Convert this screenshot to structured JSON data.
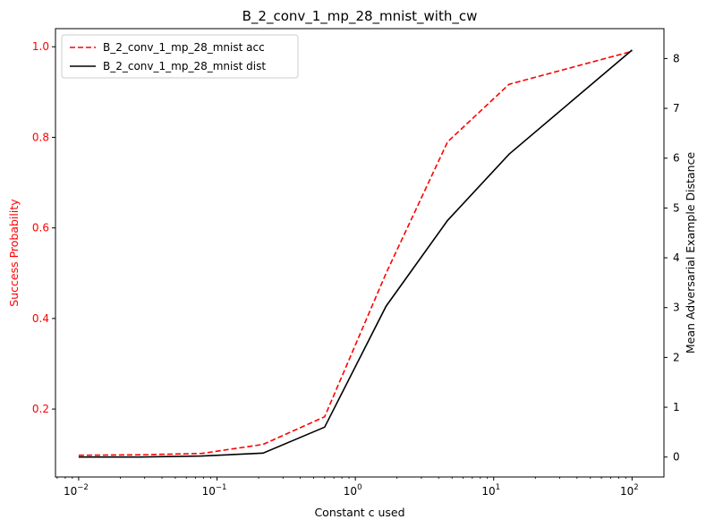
{
  "chart_data": {
    "type": "line",
    "title": "B_2_conv_1_mp_28_mnist_with_cw",
    "xlabel": "Constant c used",
    "ylabel_left": "Success Probability",
    "ylabel_right": "Mean Adversarial Example Distance",
    "x_scale": "log",
    "xlim": [
      0.0068,
      170
    ],
    "ylim_left": [
      0.05,
      1.04
    ],
    "ylim_right": [
      -0.4,
      8.6
    ],
    "x_ticks": [
      {
        "value": 0.01,
        "base": "10",
        "exp": "−2"
      },
      {
        "value": 0.1,
        "base": "10",
        "exp": "−1"
      },
      {
        "value": 1,
        "base": "10",
        "exp": "0"
      },
      {
        "value": 10,
        "base": "10",
        "exp": "1"
      },
      {
        "value": 100,
        "base": "10",
        "exp": "2"
      }
    ],
    "y_ticks_left": [
      0.2,
      0.4,
      0.6,
      0.8,
      1.0
    ],
    "y_ticks_right": [
      0,
      1,
      2,
      3,
      4,
      5,
      6,
      7,
      8
    ],
    "legend_position": "top-left",
    "grid": false,
    "colors": {
      "acc": "#ff0000",
      "dist": "#000000",
      "left_axis": "#ff0000",
      "right_axis": "#000000"
    },
    "series": [
      {
        "name": "B_2_conv_1_mp_28_mnist acc",
        "axis": "left",
        "style": "dashed",
        "x": [
          0.01,
          0.0278,
          0.0774,
          0.2154,
          0.5995,
          1.6681,
          4.6416,
          12.9155,
          100
        ],
        "y": [
          0.098,
          0.099,
          0.102,
          0.122,
          0.183,
          0.5,
          0.79,
          0.917,
          0.99
        ]
      },
      {
        "name": "B_2_conv_1_mp_28_mnist dist",
        "axis": "right",
        "style": "solid",
        "x": [
          0.01,
          0.0278,
          0.0774,
          0.2154,
          0.5995,
          1.6681,
          4.6416,
          12.9155,
          100
        ],
        "y": [
          0.0,
          0.0,
          0.02,
          0.08,
          0.6,
          3.03,
          4.75,
          6.08,
          8.17
        ]
      }
    ]
  }
}
